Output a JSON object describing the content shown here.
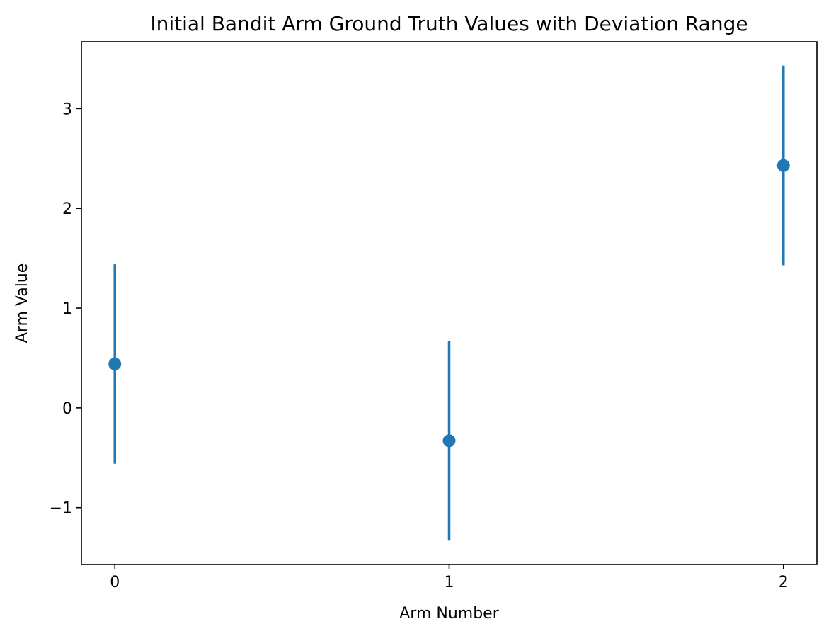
{
  "chart_data": {
    "type": "scatter",
    "title": "Initial Bandit Arm Ground Truth Values with Deviation Range",
    "xlabel": "Arm Number",
    "ylabel": "Arm Value",
    "x": [
      0,
      1,
      2
    ],
    "x_ticks": [
      "0",
      "1",
      "2"
    ],
    "y_ticks": [
      "−1",
      "0",
      "1",
      "2",
      "3"
    ],
    "y_tick_values": [
      -1,
      0,
      1,
      2,
      3
    ],
    "xlim": [
      -0.1,
      2.1
    ],
    "ylim": [
      -1.57,
      3.67
    ],
    "series": [
      {
        "values": [
          0.44,
          -0.33,
          2.43
        ],
        "error": [
          1.0,
          1.0,
          1.0
        ],
        "color": "#1f77b4"
      }
    ],
    "grid": false,
    "legend": "none"
  }
}
